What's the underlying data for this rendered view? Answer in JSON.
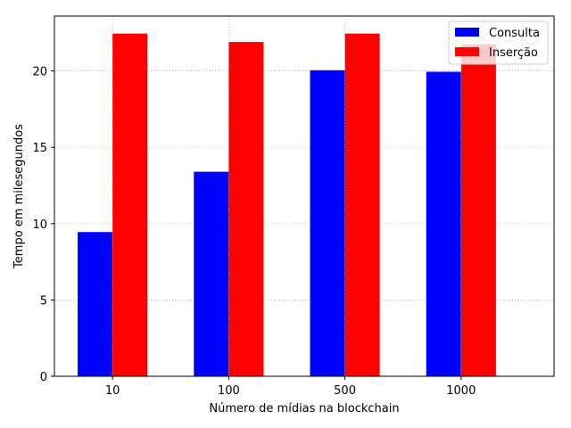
{
  "chart_data": {
    "type": "bar",
    "categories": [
      "10",
      "100",
      "500",
      "1000"
    ],
    "series": [
      {
        "name": "Consulta",
        "color": "#0000ff",
        "values": [
          9.45,
          13.4,
          20.05,
          19.95
        ]
      },
      {
        "name": "Inserção",
        "color": "#ff0000",
        "values": [
          22.45,
          21.9,
          22.45,
          21.75
        ]
      }
    ],
    "title": "",
    "xlabel": "Número de mídias na blockchain",
    "ylabel": "Tempo em milesegundos",
    "ylim": [
      0,
      23.6
    ],
    "yticks": [
      0,
      5,
      10,
      15,
      20
    ],
    "grid": true,
    "legend_position": "top-right"
  }
}
